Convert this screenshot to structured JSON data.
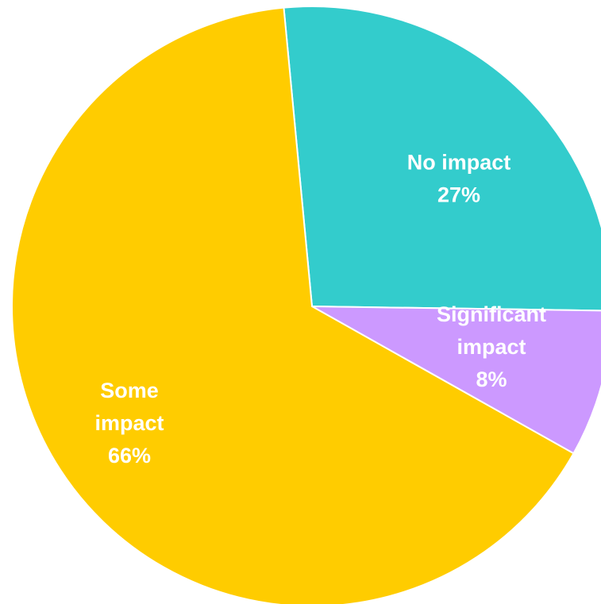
{
  "chart_data": {
    "type": "pie",
    "title": "",
    "legend": "none",
    "slices": [
      {
        "key": "no_impact",
        "label_lines": [
          "No impact"
        ],
        "value": 27,
        "value_label": "27%",
        "color": "#33CCCC"
      },
      {
        "key": "significant_impact",
        "label_lines": [
          "Significant",
          "impact"
        ],
        "value": 8,
        "value_label": "8%",
        "color": "#CC99FF"
      },
      {
        "key": "some_impact",
        "label_lines": [
          "Some",
          "impact"
        ],
        "value": 66,
        "value_label": "66%",
        "color": "#FFCC00"
      }
    ]
  }
}
